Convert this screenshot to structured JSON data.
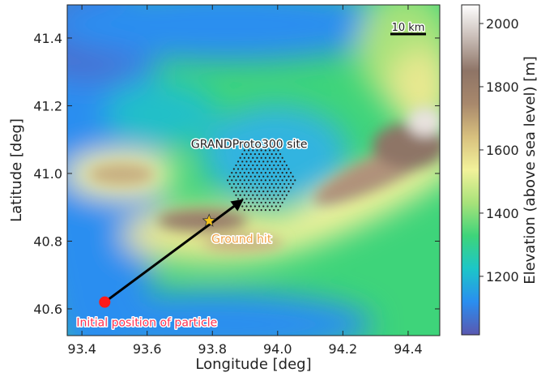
{
  "chart_data": {
    "type": "elevation-map",
    "xlabel": "Longitude [deg]",
    "ylabel": "Latitude [deg]",
    "xlim": [
      93.355,
      94.497
    ],
    "ylim": [
      40.521,
      41.498
    ],
    "xticks": [
      93.4,
      93.6,
      93.8,
      {
        "value": 94,
        "label": "94.0"
      },
      94.2,
      94.4
    ],
    "yticks": [
      40.6,
      40.8,
      {
        "value": 41,
        "label": "41.0"
      },
      41.2,
      41.4
    ],
    "colorbar": {
      "label": "Elevation (above sea level) [m]",
      "lim": [
        1015,
        2059
      ],
      "ticks": [
        1200,
        1400,
        1600,
        1800,
        2000
      ],
      "colors": [
        "#5a58b0",
        "#2a8ef0",
        "#1cc6c8",
        "#3ed47a",
        "#a8e27a",
        "#f2f29a",
        "#d8c07e",
        "#a8886c",
        "#8e7466",
        "#c8bcb6",
        "#ffffff"
      ]
    },
    "scale_bar": "10 km",
    "site": {
      "label": "GRANDProto300 site",
      "x": 93.95,
      "y": 40.98
    },
    "arrow": {
      "x": [
        93.47,
        93.89
      ],
      "y": [
        40.62,
        40.92
      ],
      "color": "#000000"
    },
    "markers": [
      {
        "label": "Initial position of particle",
        "x": 93.47,
        "y": 40.62,
        "color": "#ff1a1a",
        "label_color": "#ff3050"
      },
      {
        "label": "Ground hit",
        "x": 93.79,
        "y": 40.86,
        "color": "#f2c21a",
        "label_color": "#f0a040"
      }
    ]
  }
}
